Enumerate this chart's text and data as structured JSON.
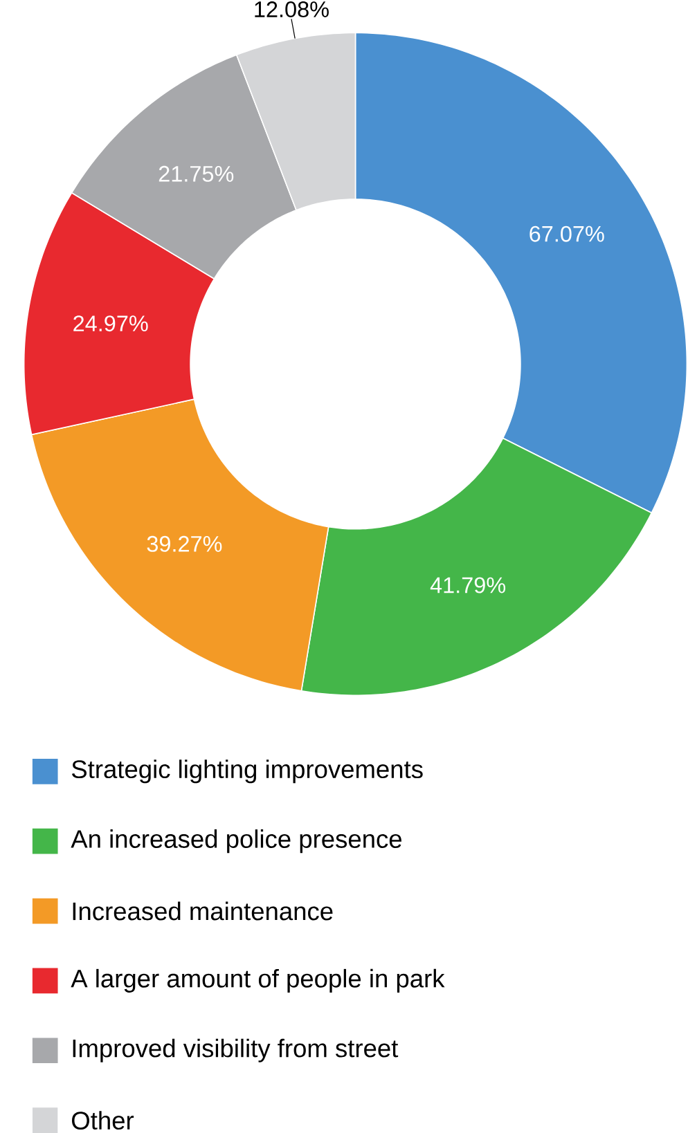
{
  "chart_data": {
    "type": "donut",
    "categories": [
      "Strategic lighting  improvements",
      "An increased police presence",
      "Increased maintenance",
      "A larger amount of people in park",
      "Improved visibility from street",
      "Other"
    ],
    "values": [
      67.07,
      41.79,
      39.27,
      24.97,
      21.75,
      12.08
    ],
    "value_labels": [
      "67.07%",
      "41.79%",
      "39.27%",
      "24.97%",
      "21.75%",
      "12.08%"
    ],
    "colors": [
      "#4a90d0",
      "#44b649",
      "#f39a26",
      "#e8292f",
      "#a7a8ab",
      "#d4d5d7"
    ],
    "legend": "bottom"
  }
}
